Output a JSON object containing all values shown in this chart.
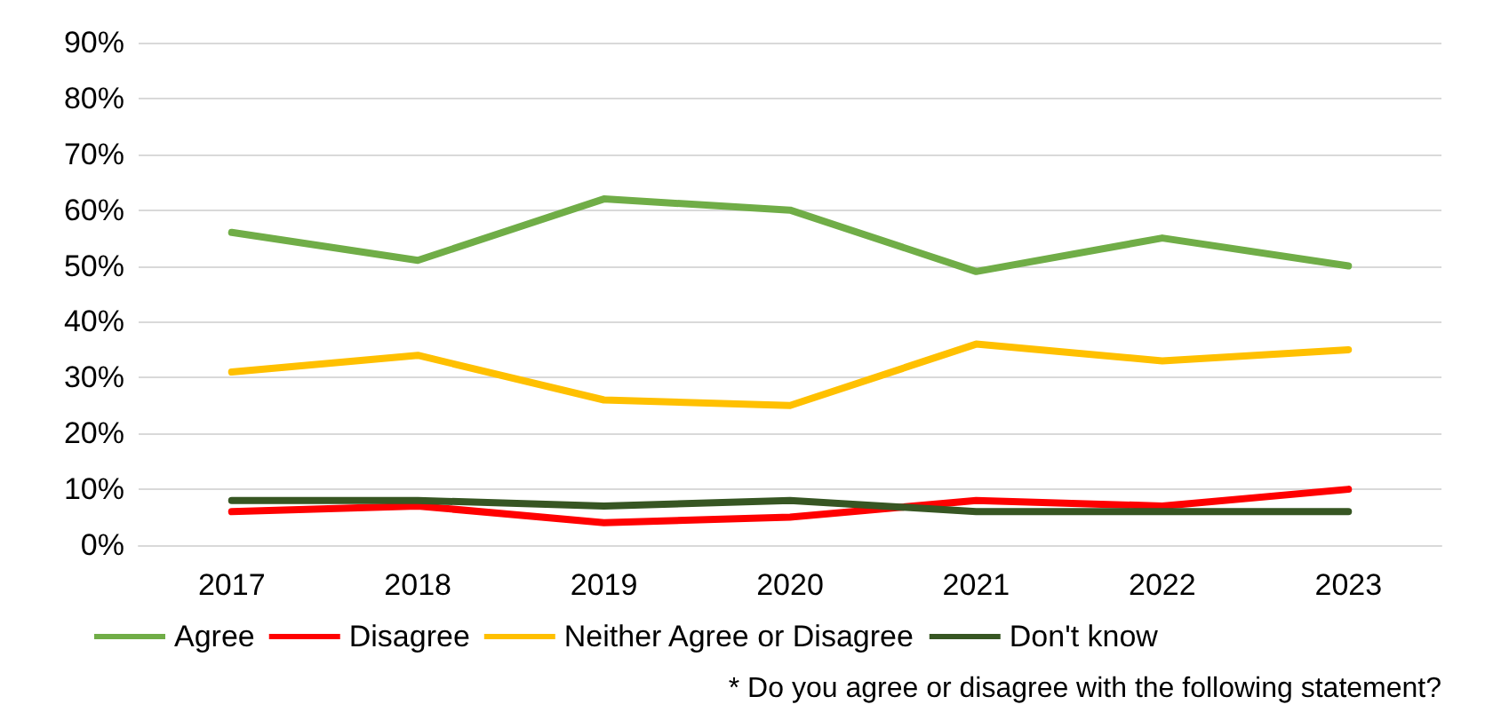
{
  "chart_data": {
    "type": "line",
    "categories": [
      "2017",
      "2018",
      "2019",
      "2020",
      "2021",
      "2022",
      "2023"
    ],
    "series": [
      {
        "name": "Agree",
        "color": "#70ad47",
        "values": [
          56,
          51,
          62,
          60,
          49,
          55,
          50
        ]
      },
      {
        "name": "Disagree",
        "color": "#ff0000",
        "values": [
          6,
          7,
          4,
          5,
          8,
          7,
          10
        ]
      },
      {
        "name": "Neither Agree or Disagree",
        "color": "#ffc000",
        "values": [
          31,
          34,
          26,
          25,
          36,
          33,
          35
        ]
      },
      {
        "name": "Don't know",
        "color": "#375623",
        "values": [
          8,
          8,
          7,
          8,
          6,
          6,
          6
        ]
      }
    ],
    "ylim": [
      0,
      90
    ],
    "yticks": [
      {
        "value": 0,
        "label": "0%"
      },
      {
        "value": 10,
        "label": "10%"
      },
      {
        "value": 20,
        "label": "20%"
      },
      {
        "value": 30,
        "label": "30%"
      },
      {
        "value": 40,
        "label": "40%"
      },
      {
        "value": 50,
        "label": "50%"
      },
      {
        "value": 60,
        "label": "60%"
      },
      {
        "value": 70,
        "label": "70%"
      },
      {
        "value": 80,
        "label": "80%"
      },
      {
        "value": 90,
        "label": "90%"
      }
    ],
    "grid": "y",
    "legend": "bottom",
    "marker": "none",
    "line_style": "solid",
    "annotations": [
      "* Do you agree or disagree with the following statement?"
    ]
  }
}
